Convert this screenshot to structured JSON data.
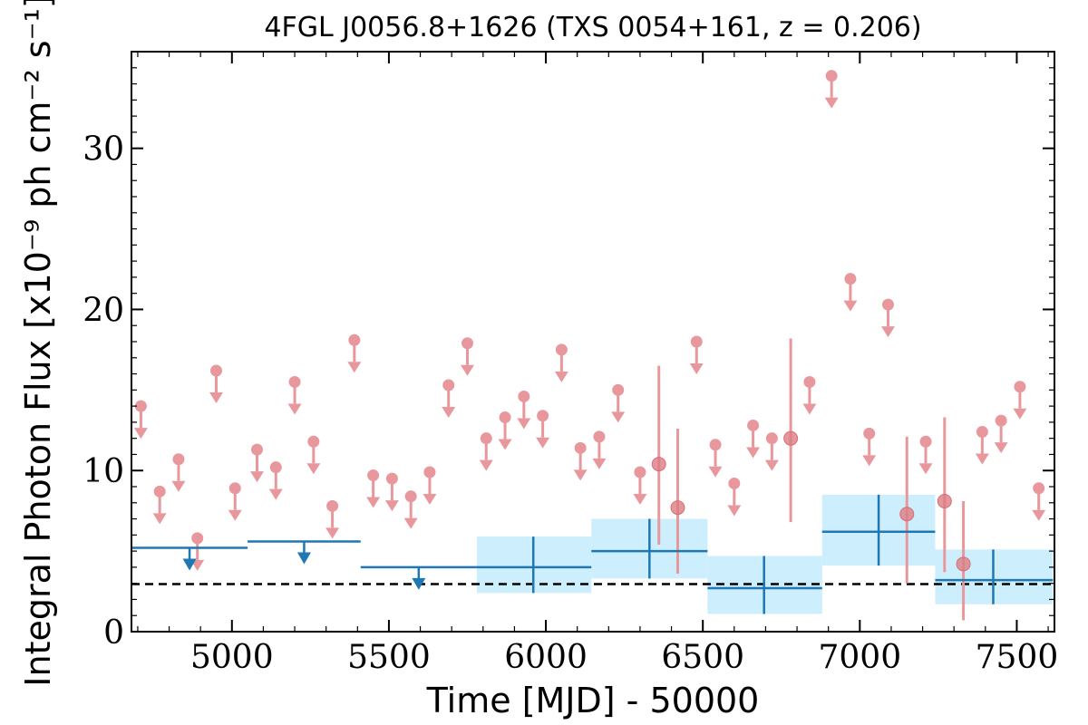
{
  "chart_data": {
    "type": "scatter",
    "title": "4FGL J0056.8+1626 (TXS 0054+161, z = 0.206)",
    "xlabel": "Time [MJD] - 50000",
    "ylabel": "Integral Photon Flux [x10⁻⁹ ph cm⁻² s⁻¹]",
    "xlim": [
      4680,
      7620
    ],
    "ylim": [
      0,
      36
    ],
    "xticks": [
      5000,
      5500,
      6000,
      6500,
      7000,
      7500
    ],
    "yticks": [
      0,
      10,
      20,
      30
    ],
    "x_tick_labels": [
      "5000",
      "5500",
      "6000",
      "6500",
      "7000",
      "7500"
    ],
    "y_tick_labels": [
      "0",
      "10",
      "20",
      "30"
    ],
    "colors": {
      "fine_bins": "#e8989c",
      "coarse_bins": "#1f77b4",
      "coarse_band": "#cdeefc",
      "reference_line": "#000000"
    },
    "reference_line": {
      "y": 2.95,
      "style": "dashed"
    },
    "fine_upper_limits": [
      {
        "x": 4710,
        "y": 14.0
      },
      {
        "x": 4770,
        "y": 8.7
      },
      {
        "x": 4830,
        "y": 10.7
      },
      {
        "x": 4890,
        "y": 5.8
      },
      {
        "x": 4950,
        "y": 16.2
      },
      {
        "x": 5010,
        "y": 8.9
      },
      {
        "x": 5080,
        "y": 11.3
      },
      {
        "x": 5140,
        "y": 10.2
      },
      {
        "x": 5200,
        "y": 15.5
      },
      {
        "x": 5260,
        "y": 11.8
      },
      {
        "x": 5320,
        "y": 7.8
      },
      {
        "x": 5390,
        "y": 18.1
      },
      {
        "x": 5450,
        "y": 9.7
      },
      {
        "x": 5510,
        "y": 9.5
      },
      {
        "x": 5570,
        "y": 8.4
      },
      {
        "x": 5630,
        "y": 9.9
      },
      {
        "x": 5690,
        "y": 15.3
      },
      {
        "x": 5750,
        "y": 17.9
      },
      {
        "x": 5810,
        "y": 12.0
      },
      {
        "x": 5870,
        "y": 13.3
      },
      {
        "x": 5930,
        "y": 14.6
      },
      {
        "x": 5990,
        "y": 13.4
      },
      {
        "x": 6050,
        "y": 17.5
      },
      {
        "x": 6110,
        "y": 11.4
      },
      {
        "x": 6170,
        "y": 12.1
      },
      {
        "x": 6230,
        "y": 15.0
      },
      {
        "x": 6300,
        "y": 9.9
      },
      {
        "x": 6480,
        "y": 18.0
      },
      {
        "x": 6540,
        "y": 11.6
      },
      {
        "x": 6600,
        "y": 9.2
      },
      {
        "x": 6660,
        "y": 12.8
      },
      {
        "x": 6720,
        "y": 12.0
      },
      {
        "x": 6840,
        "y": 15.5
      },
      {
        "x": 6910,
        "y": 34.5
      },
      {
        "x": 6970,
        "y": 21.9
      },
      {
        "x": 7030,
        "y": 12.3
      },
      {
        "x": 7090,
        "y": 20.3
      },
      {
        "x": 7210,
        "y": 11.8
      },
      {
        "x": 7390,
        "y": 12.4
      },
      {
        "x": 7450,
        "y": 13.1
      },
      {
        "x": 7510,
        "y": 15.2
      },
      {
        "x": 7570,
        "y": 8.9
      }
    ],
    "fine_detections": [
      {
        "x": 6360,
        "y": 10.4,
        "ylo": 5.4,
        "yhi": 16.5
      },
      {
        "x": 6420,
        "y": 7.7,
        "ylo": 3.6,
        "yhi": 12.6
      },
      {
        "x": 6780,
        "y": 12.0,
        "ylo": 6.8,
        "yhi": 18.2
      },
      {
        "x": 7150,
        "y": 7.3,
        "ylo": 3.0,
        "yhi": 12.1
      },
      {
        "x": 7270,
        "y": 8.1,
        "ylo": 3.7,
        "yhi": 13.3
      },
      {
        "x": 7330,
        "y": 4.2,
        "ylo": 0.7,
        "yhi": 8.1
      }
    ],
    "coarse_upper_limits": [
      {
        "x0": 4680,
        "x1": 5050,
        "xc": 4865,
        "y": 5.2
      },
      {
        "x0": 5050,
        "x1": 5410,
        "xc": 5230,
        "y": 5.6
      },
      {
        "x0": 5410,
        "x1": 5780,
        "xc": 5595,
        "y": 4.0
      }
    ],
    "coarse_detections": [
      {
        "x0": 5780,
        "x1": 6145,
        "xc": 5960,
        "y": 4.0,
        "ylo": 2.4,
        "yhi": 5.9
      },
      {
        "x0": 6145,
        "x1": 6515,
        "xc": 6330,
        "y": 5.0,
        "ylo": 3.3,
        "yhi": 7.0
      },
      {
        "x0": 6515,
        "x1": 6880,
        "xc": 6695,
        "y": 2.7,
        "ylo": 1.1,
        "yhi": 4.7
      },
      {
        "x0": 6880,
        "x1": 7240,
        "xc": 7060,
        "y": 6.2,
        "ylo": 4.1,
        "yhi": 8.5
      },
      {
        "x0": 7240,
        "x1": 7615,
        "xc": 7425,
        "y": 3.2,
        "ylo": 1.7,
        "yhi": 5.1
      }
    ]
  }
}
